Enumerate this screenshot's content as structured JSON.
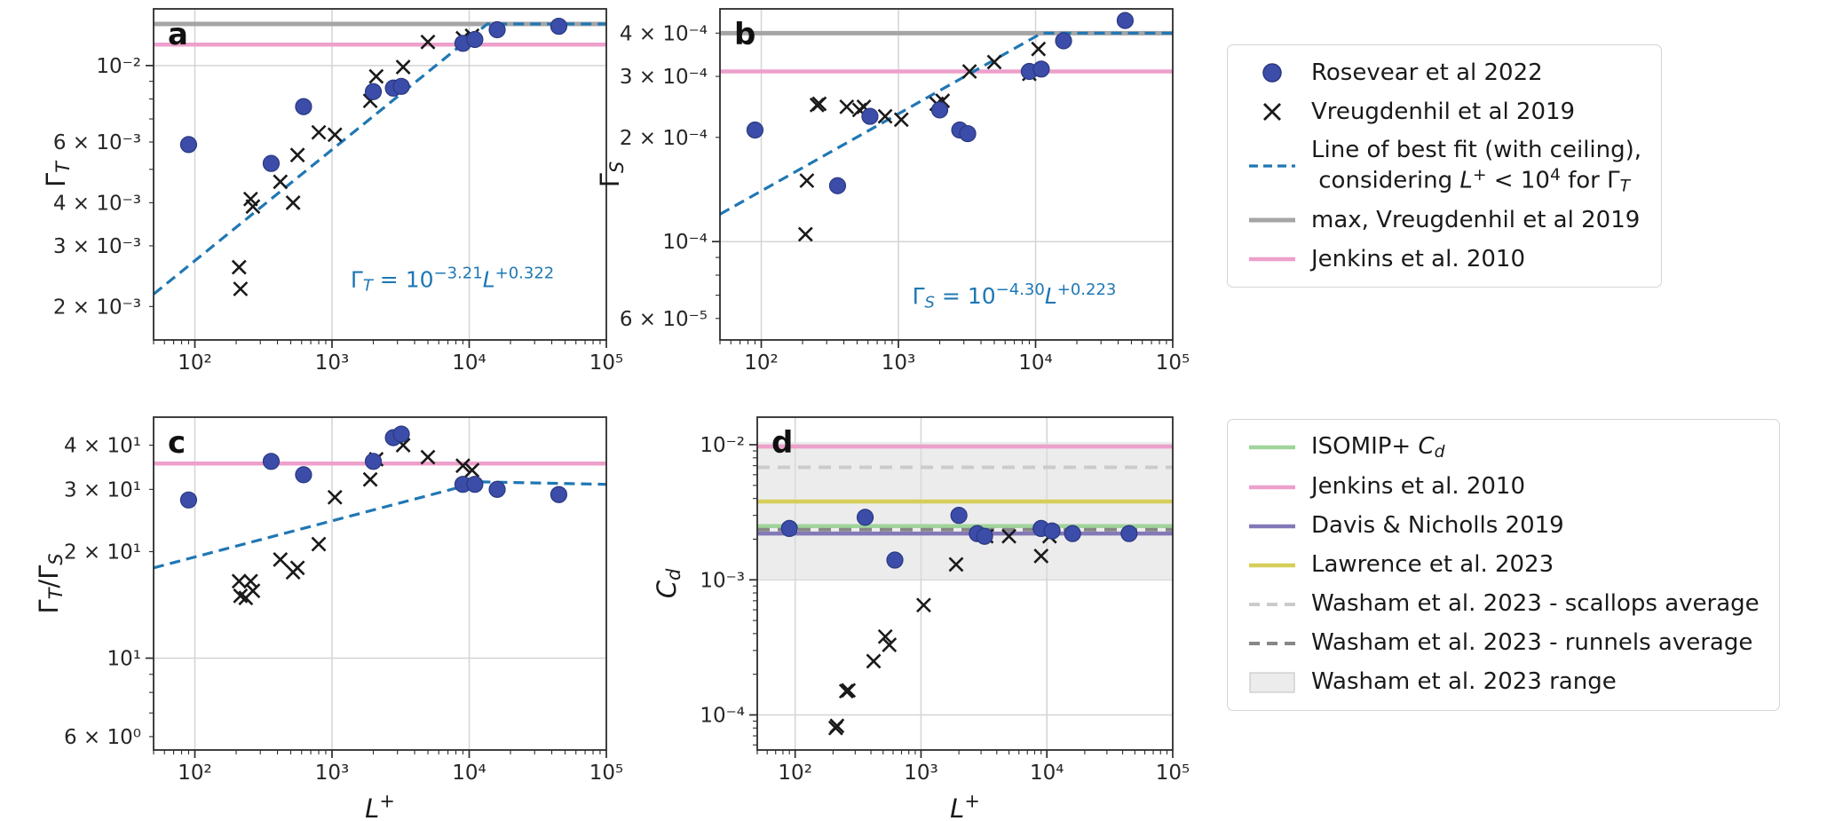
{
  "colors": {
    "circle": "#3b4da8",
    "circle_edge": "#2a3880",
    "cross": "#1a1a1a",
    "fit": "#1f77b4",
    "gray": "#a5a5a5",
    "pink": "#eda0cb",
    "green": "#a0d49b",
    "purple": "#8478b8",
    "yellow": "#d6ce58",
    "light_gray_dash": "#cbcbcb",
    "dark_gray_dash": "#878787",
    "band": "#dcdcdc",
    "band_edge": "#c8c8c8",
    "grid": "#d4d4d4",
    "spine": "#2b2b2b",
    "text": "#1a1a1a"
  },
  "legends": {
    "top": {
      "items": [
        {
          "label": "Rosevear et al 2022"
        },
        {
          "label": "Vreugdenhil et al 2019"
        },
        {
          "label": [
            {
              "t": "Line of best fit (with ceiling),"
            },
            {
              "br": true
            },
            {
              "t": " considering "
            },
            {
              "t": "L",
              "i": true
            },
            {
              "t": "+",
              "sup": true
            },
            {
              "t": " < 10"
            },
            {
              "t": "4",
              "sup": true
            },
            {
              "t": " for Γ"
            },
            {
              "t": "T",
              "sub": true,
              "i": true
            }
          ]
        },
        {
          "label": "max, Vreugdenhil et al 2019"
        },
        {
          "label": "Jenkins et al. 2010"
        }
      ]
    },
    "bottom": {
      "items": [
        {
          "label": [
            {
              "t": "ISOMIP+ "
            },
            {
              "t": "C",
              "i": true
            },
            {
              "t": "d",
              "sub": true,
              "i": true
            }
          ]
        },
        {
          "label": "Jenkins et al. 2010"
        },
        {
          "label": "Davis & Nicholls 2019"
        },
        {
          "label": "Lawrence et al. 2023"
        },
        {
          "label": "Washam et al. 2023 - scallops average"
        },
        {
          "label": "Washam et al. 2023 - runnels average"
        },
        {
          "label": "Washam et al. 2023 range"
        }
      ]
    }
  },
  "chart_data": [
    {
      "id": "a",
      "type": "scatter",
      "letter": "a",
      "xlim": [
        50,
        100000
      ],
      "ylim": [
        0.0016,
        0.0146
      ],
      "xticks": [
        {
          "v": 100,
          "l": "10²"
        },
        {
          "v": 1000,
          "l": "10³"
        },
        {
          "v": 10000,
          "l": "10⁴"
        },
        {
          "v": 100000,
          "l": "10⁵"
        }
      ],
      "yticks": [
        {
          "v": 0.002,
          "l": "2 × 10⁻³"
        },
        {
          "v": 0.003,
          "l": "3 × 10⁻³"
        },
        {
          "v": 0.004,
          "l": "4 × 10⁻³"
        },
        {
          "v": 0.006,
          "l": "6 × 10⁻³"
        },
        {
          "v": 0.01,
          "l": "10⁻²"
        }
      ],
      "ylabel": [
        {
          "t": "Γ"
        },
        {
          "t": "T",
          "sub": true,
          "i": true
        }
      ],
      "xlabel": null,
      "ref_lines": [
        {
          "name": "max-vreugdenhil",
          "color": "gray",
          "y": 0.0132,
          "w": 5
        },
        {
          "name": "jenkins",
          "color": "pink",
          "y": 0.0115,
          "w": 4.5
        }
      ],
      "fit": {
        "type": "power",
        "logA": -3.21,
        "exp": 0.322,
        "ceil": 0.0132
      },
      "annotation": {
        "fx": 0.66,
        "fy": 0.84,
        "segs": [
          {
            "t": "Γ"
          },
          {
            "t": "T",
            "sub": true,
            "i": true
          },
          {
            "t": " = 10"
          },
          {
            "t": "−3.21",
            "sup": true
          },
          {
            "t": "L",
            "i": true
          },
          {
            "t": "+0.322",
            "sup": true
          }
        ]
      },
      "series": {
        "rosevear": [
          [
            90,
            0.0059
          ],
          [
            360,
            0.0052
          ],
          [
            620,
            0.0076
          ],
          [
            2000,
            0.0084
          ],
          [
            2800,
            0.0086
          ],
          [
            3200,
            0.0087
          ],
          [
            9000,
            0.0116
          ],
          [
            11000,
            0.0119
          ],
          [
            16000,
            0.0127
          ],
          [
            45000,
            0.013
          ]
        ],
        "vreugdenhil": [
          [
            210,
            0.0026
          ],
          [
            215,
            0.00225
          ],
          [
            255,
            0.0041
          ],
          [
            265,
            0.0039
          ],
          [
            420,
            0.0046
          ],
          [
            520,
            0.004
          ],
          [
            560,
            0.0055
          ],
          [
            800,
            0.0064
          ],
          [
            1050,
            0.0063
          ],
          [
            1900,
            0.0079
          ],
          [
            2100,
            0.0093
          ],
          [
            3300,
            0.0099
          ],
          [
            5000,
            0.0117
          ],
          [
            9000,
            0.012
          ],
          [
            10500,
            0.0122
          ]
        ]
      }
    },
    {
      "id": "b",
      "type": "scatter",
      "letter": "b",
      "xlim": [
        50,
        100000
      ],
      "ylim": [
        5.2e-05,
        0.00047
      ],
      "xticks": [
        {
          "v": 100,
          "l": "10²"
        },
        {
          "v": 1000,
          "l": "10³"
        },
        {
          "v": 10000,
          "l": "10⁴"
        },
        {
          "v": 100000,
          "l": "10⁵"
        }
      ],
      "yticks": [
        {
          "v": 6e-05,
          "l": "6 × 10⁻⁵"
        },
        {
          "v": 0.0001,
          "l": "10⁻⁴"
        },
        {
          "v": 0.0002,
          "l": "2 × 10⁻⁴"
        },
        {
          "v": 0.0003,
          "l": "3 × 10⁻⁴"
        },
        {
          "v": 0.0004,
          "l": "4 × 10⁻⁴"
        }
      ],
      "ylabel": [
        {
          "t": "Γ"
        },
        {
          "t": "S",
          "sub": true,
          "i": true
        }
      ],
      "xlabel": null,
      "ref_lines": [
        {
          "name": "max-vreugdenhil",
          "color": "gray",
          "y": 0.0004,
          "w": 5
        },
        {
          "name": "jenkins",
          "color": "pink",
          "y": 0.00031,
          "w": 4.5
        }
      ],
      "fit": {
        "type": "power",
        "logA": -4.3,
        "exp": 0.223,
        "ceil": 0.0004
      },
      "annotation": {
        "fx": 0.65,
        "fy": 0.89,
        "segs": [
          {
            "t": "Γ"
          },
          {
            "t": "S",
            "sub": true,
            "i": true
          },
          {
            "t": " = 10"
          },
          {
            "t": "−4.30",
            "sup": true
          },
          {
            "t": "L",
            "i": true
          },
          {
            "t": "+0.223",
            "sup": true
          }
        ]
      },
      "series": {
        "rosevear": [
          [
            90,
            0.00021
          ],
          [
            360,
            0.000145
          ],
          [
            620,
            0.00023
          ],
          [
            2000,
            0.00024
          ],
          [
            2800,
            0.00021
          ],
          [
            3200,
            0.000205
          ],
          [
            9000,
            0.00031
          ],
          [
            11000,
            0.000315
          ],
          [
            16000,
            0.00038
          ],
          [
            45000,
            0.000435
          ]
        ],
        "vreugdenhil": [
          [
            210,
            0.000105
          ],
          [
            215,
            0.00015
          ],
          [
            255,
            0.000248
          ],
          [
            265,
            0.00025
          ],
          [
            420,
            0.000245
          ],
          [
            520,
            0.00024
          ],
          [
            560,
            0.000245
          ],
          [
            800,
            0.00023
          ],
          [
            1050,
            0.000225
          ],
          [
            1900,
            0.00025
          ],
          [
            2100,
            0.000255
          ],
          [
            3300,
            0.00031
          ],
          [
            5000,
            0.00033
          ],
          [
            9000,
            0.000305
          ],
          [
            10500,
            0.00036
          ]
        ]
      }
    },
    {
      "id": "c",
      "type": "scatter",
      "letter": "c",
      "xlim": [
        50,
        100000
      ],
      "ylim": [
        5.5,
        48
      ],
      "xticks": [
        {
          "v": 100,
          "l": "10²"
        },
        {
          "v": 1000,
          "l": "10³"
        },
        {
          "v": 10000,
          "l": "10⁴"
        },
        {
          "v": 100000,
          "l": "10⁵"
        }
      ],
      "yticks": [
        {
          "v": 6,
          "l": "6 × 10⁰"
        },
        {
          "v": 10,
          "l": "10¹"
        },
        {
          "v": 20,
          "l": "2 × 10¹"
        },
        {
          "v": 30,
          "l": "3 × 10¹"
        },
        {
          "v": 40,
          "l": "4 × 10¹"
        }
      ],
      "ylabel": [
        {
          "t": "Γ"
        },
        {
          "t": "T",
          "sub": true,
          "i": true
        },
        {
          "t": "/Γ"
        },
        {
          "t": "S",
          "sub": true,
          "i": true
        }
      ],
      "xlabel": [
        {
          "t": "L",
          "i": true
        },
        {
          "t": "+",
          "sup": true
        }
      ],
      "ref_lines": [
        {
          "name": "jenkins",
          "color": "pink",
          "y": 35.5,
          "w": 4.5
        }
      ],
      "fit": {
        "type": "points",
        "pts": [
          [
            50,
            18
          ],
          [
            12000,
            31.5
          ],
          [
            100000,
            31
          ]
        ]
      },
      "annotation": null,
      "series": {
        "rosevear": [
          [
            90,
            28
          ],
          [
            360,
            36
          ],
          [
            620,
            33
          ],
          [
            2000,
            36
          ],
          [
            2800,
            42
          ],
          [
            3200,
            43
          ],
          [
            9000,
            31
          ],
          [
            11000,
            31
          ],
          [
            16000,
            30
          ],
          [
            45000,
            29
          ]
        ],
        "vreugdenhil": [
          [
            210,
            16.5
          ],
          [
            215,
            15
          ],
          [
            235,
            14.8
          ],
          [
            255,
            16.5
          ],
          [
            265,
            15.5
          ],
          [
            420,
            19
          ],
          [
            520,
            17.5
          ],
          [
            560,
            18
          ],
          [
            800,
            21
          ],
          [
            1050,
            28.5
          ],
          [
            1900,
            32
          ],
          [
            2100,
            36.5
          ],
          [
            3300,
            40
          ],
          [
            5000,
            37
          ],
          [
            9000,
            35
          ],
          [
            10500,
            34
          ]
        ]
      }
    },
    {
      "id": "d",
      "type": "scatter",
      "letter": "d",
      "xlim": [
        50,
        100000
      ],
      "ylim": [
        5.5e-05,
        0.016
      ],
      "xticks": [
        {
          "v": 100,
          "l": "10²"
        },
        {
          "v": 1000,
          "l": "10³"
        },
        {
          "v": 10000,
          "l": "10⁴"
        },
        {
          "v": 100000,
          "l": "10⁵"
        }
      ],
      "yticks": [
        {
          "v": 0.0001,
          "l": "10⁻⁴"
        },
        {
          "v": 0.001,
          "l": "10⁻³"
        },
        {
          "v": 0.01,
          "l": "10⁻²"
        }
      ],
      "ylabel": [
        {
          "t": "C",
          "i": true
        },
        {
          "t": "d",
          "sub": true,
          "i": true
        }
      ],
      "xlabel": [
        {
          "t": "L",
          "i": true
        },
        {
          "t": "+",
          "sup": true
        }
      ],
      "band": {
        "y0": 0.00102,
        "y1": 0.0105,
        "name": "washam-range"
      },
      "ref_lines": [
        {
          "name": "davis-nicholls",
          "color": "purple",
          "y": 0.0022,
          "w": 4.5
        },
        {
          "name": "isomip",
          "color": "green",
          "y": 0.0025,
          "w": 4.5
        },
        {
          "name": "lawrence",
          "color": "yellow",
          "y": 0.0038,
          "w": 4.5
        },
        {
          "name": "jenkins",
          "color": "pink",
          "y": 0.0097,
          "w": 4.5
        },
        {
          "name": "washam-scallops",
          "color": "light_gray_dash",
          "y": 0.0068,
          "w": 4,
          "dash": "14 9"
        },
        {
          "name": "washam-runnels",
          "color": "dark_gray_dash",
          "y": 0.00235,
          "w": 4,
          "dash": "14 9"
        }
      ],
      "fit": null,
      "annotation": null,
      "series": {
        "rosevear": [
          [
            90,
            0.0024
          ],
          [
            360,
            0.0029
          ],
          [
            620,
            0.0014
          ],
          [
            2000,
            0.003
          ],
          [
            2800,
            0.0022
          ],
          [
            3200,
            0.0021
          ],
          [
            9000,
            0.0024
          ],
          [
            11000,
            0.0023
          ],
          [
            16000,
            0.0022
          ],
          [
            45000,
            0.0022
          ]
        ],
        "vreugdenhil": [
          [
            210,
            8e-05
          ],
          [
            215,
            8.3e-05
          ],
          [
            255,
            0.00015
          ],
          [
            265,
            0.000152
          ],
          [
            420,
            0.00025
          ],
          [
            520,
            0.00038
          ],
          [
            560,
            0.00033
          ],
          [
            1050,
            0.00065
          ],
          [
            1900,
            0.0013
          ],
          [
            3300,
            0.0021
          ],
          [
            5000,
            0.0021
          ],
          [
            9000,
            0.0015
          ],
          [
            10500,
            0.0021
          ]
        ]
      }
    }
  ]
}
